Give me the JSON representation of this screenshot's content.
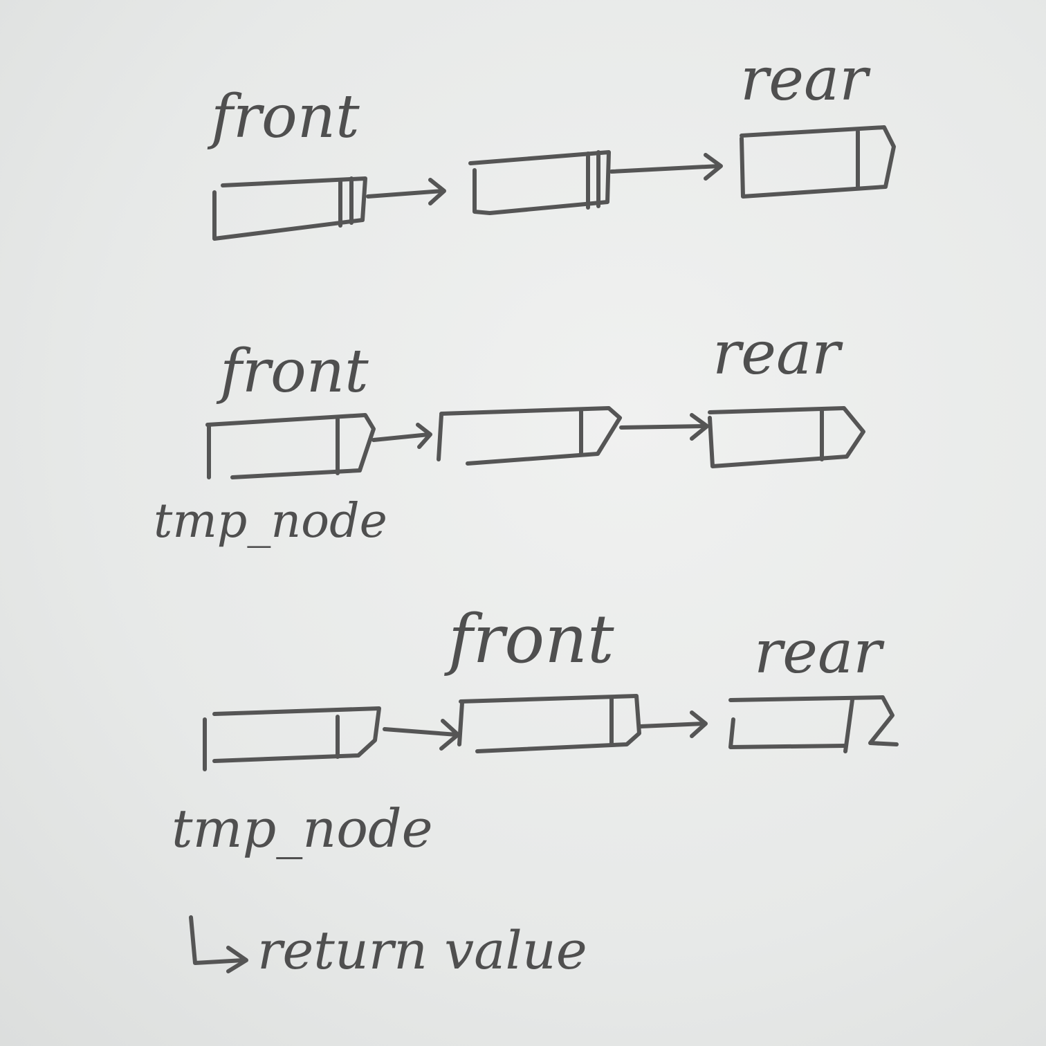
{
  "rows": [
    {
      "front_label": "front",
      "rear_label": "rear",
      "tmp_label": "",
      "nodes": 3
    },
    {
      "front_label": "front",
      "rear_label": "rear",
      "tmp_label": "tmp_node",
      "nodes": 3
    },
    {
      "front_label": "front",
      "rear_label": "rear",
      "tmp_label": "tmp_node",
      "nodes": 3
    }
  ],
  "return_note": "return value",
  "colors": {
    "ink": "#555555",
    "paper": "#e9ebea"
  }
}
